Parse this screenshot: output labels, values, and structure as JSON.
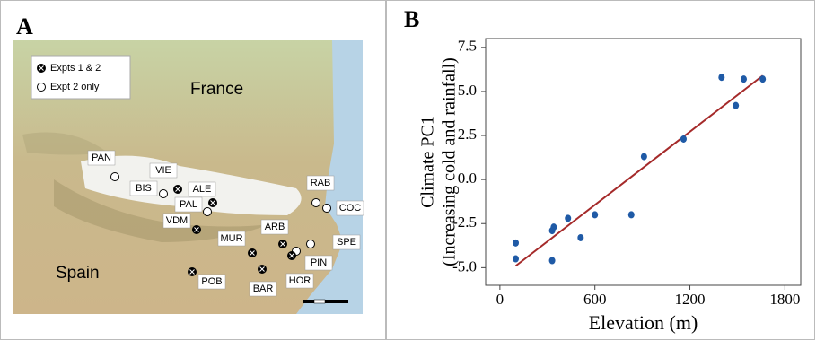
{
  "map": {
    "panel_label": "A",
    "legend": [
      "Expts 1 & 2",
      "Expt 2 only"
    ],
    "countries": [
      "France",
      "Spain"
    ],
    "sites": [
      "PAN",
      "BIS",
      "VIE",
      "ALE",
      "PAL",
      "VDM",
      "MUR",
      "ARB",
      "RAB",
      "COC",
      "SPE",
      "PIN",
      "HOR",
      "BAR",
      "POB"
    ]
  },
  "chart_data": {
    "type": "scatter",
    "panel_label": "B",
    "xlabel": "Elevation (m)",
    "ylabel": [
      "Climate PC1",
      "(Increasing cold and rainfall)"
    ],
    "series": [
      {
        "color": "#1f5aa6",
        "x": [
          100,
          100,
          330,
          340,
          330,
          430,
          510,
          600,
          830,
          910,
          1160,
          1400,
          1490,
          1540,
          1660
        ],
        "values": [
          -3.6,
          -4.5,
          -2.9,
          -2.7,
          -4.6,
          -2.2,
          -3.3,
          -2.0,
          -2.0,
          1.3,
          2.3,
          5.8,
          4.2,
          5.7,
          5.7
        ]
      }
    ],
    "trendline": {
      "color": "#a52a2a",
      "x": [
        100,
        1660
      ],
      "values": [
        -4.9,
        5.9
      ]
    },
    "xlim": [
      -90,
      1900
    ],
    "xticks": [
      0,
      600,
      1200,
      1800
    ],
    "ylim": [
      -6,
      8
    ],
    "yticks": [
      {
        "value": -5,
        "label": "-5.0"
      },
      -2.5,
      {
        "value": 0,
        "label": "0.0"
      },
      2.5,
      {
        "value": 5,
        "label": "5.0"
      },
      7.5
    ]
  }
}
